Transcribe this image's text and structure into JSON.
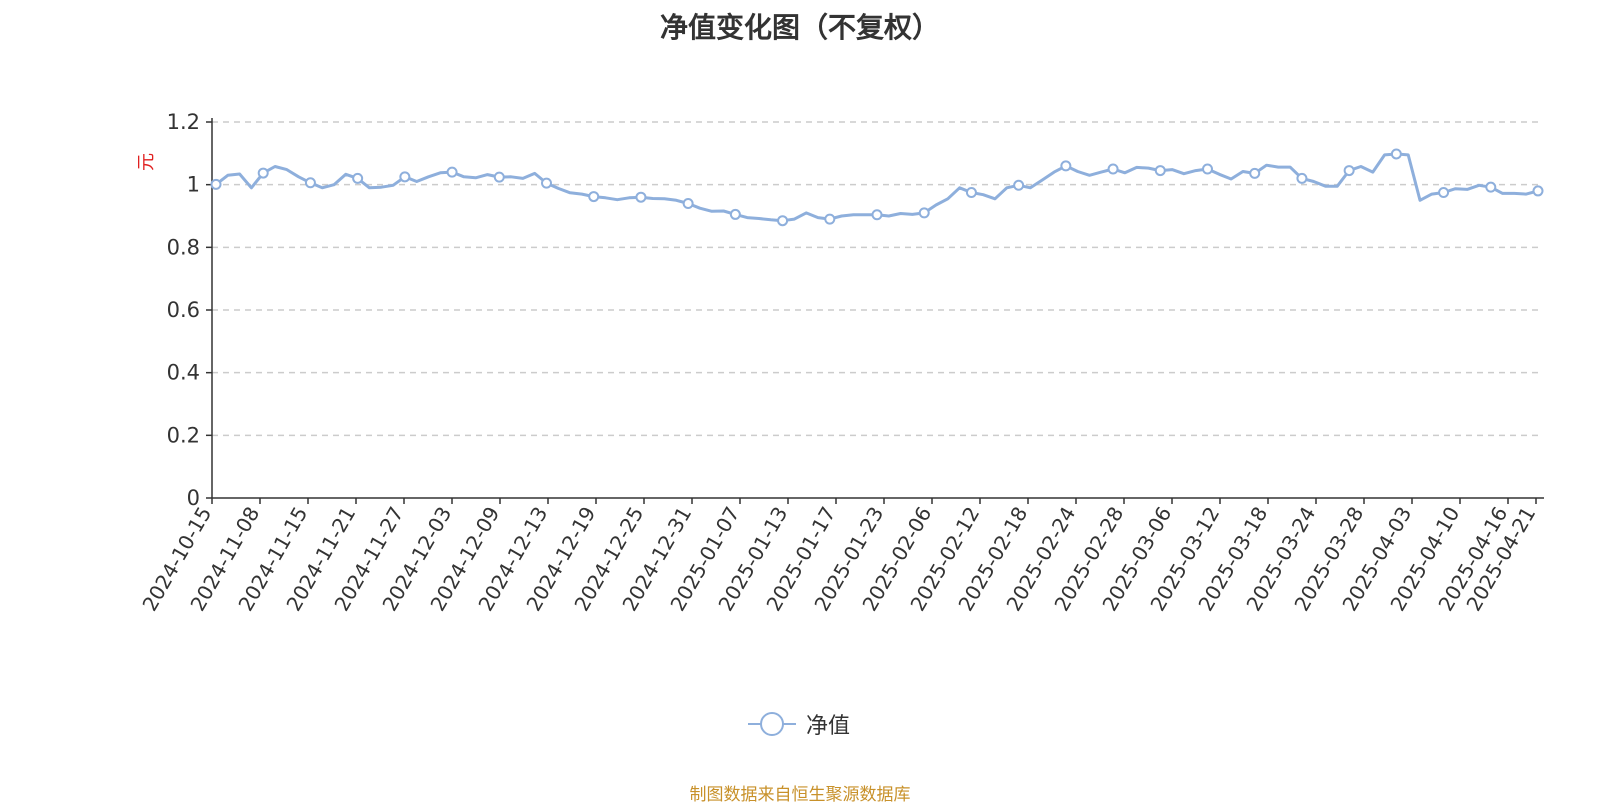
{
  "chart_data": {
    "type": "line",
    "title": "净值变化图（不复权）",
    "ylabel": "元",
    "xlabel": "",
    "ylim": [
      0,
      1.2
    ],
    "y_ticks": [
      "0",
      "0.2",
      "0.4",
      "0.6",
      "0.8",
      "1",
      "1.2"
    ],
    "grid": "horizontal dashed",
    "legend_position": "bottom-center",
    "x_tick_labels": [
      "2024-10-15",
      "2024-11-08",
      "2024-11-15",
      "2024-11-21",
      "2024-11-27",
      "2024-12-03",
      "2024-12-09",
      "2024-12-13",
      "2024-12-19",
      "2024-12-25",
      "2024-12-31",
      "2025-01-07",
      "2025-01-13",
      "2025-01-17",
      "2025-01-23",
      "2025-02-06",
      "2025-02-12",
      "2025-02-18",
      "2025-02-24",
      "2025-02-28",
      "2025-03-06",
      "2025-03-12",
      "2025-03-18",
      "2025-03-24",
      "2025-03-28",
      "2025-04-03",
      "2025-04-10",
      "2025-04-16",
      "2025-04-21"
    ],
    "series": [
      {
        "name": "净值",
        "color": "#8eafdc",
        "values": [
          1.001,
          1.03,
          1.034,
          0.99,
          1.037,
          1.058,
          1.048,
          1.025,
          1.006,
          0.99,
          1.0,
          1.033,
          1.02,
          0.99,
          0.992,
          0.998,
          1.025,
          1.01,
          1.025,
          1.038,
          1.04,
          1.025,
          1.022,
          1.032,
          1.024,
          1.025,
          1.02,
          1.036,
          1.005,
          0.988,
          0.974,
          0.97,
          0.962,
          0.958,
          0.952,
          0.958,
          0.96,
          0.956,
          0.955,
          0.95,
          0.94,
          0.925,
          0.915,
          0.916,
          0.905,
          0.895,
          0.892,
          0.888,
          0.885,
          0.89,
          0.91,
          0.895,
          0.89,
          0.9,
          0.904,
          0.904,
          0.904,
          0.9,
          0.908,
          0.905,
          0.91,
          0.935,
          0.955,
          0.99,
          0.975,
          0.968,
          0.955,
          0.99,
          0.998,
          0.99,
          1.015,
          1.04,
          1.06,
          1.042,
          1.03,
          1.04,
          1.05,
          1.038,
          1.055,
          1.053,
          1.045,
          1.048,
          1.035,
          1.045,
          1.05,
          1.033,
          1.018,
          1.042,
          1.036,
          1.062,
          1.056,
          1.056,
          1.02,
          1.01,
          0.995,
          0.995,
          1.045,
          1.058,
          1.04,
          1.095,
          1.098,
          1.095,
          0.95,
          0.97,
          0.975,
          0.987,
          0.985,
          0.998,
          0.992,
          0.972,
          0.972,
          0.97,
          0.98
        ]
      }
    ]
  },
  "legend": {
    "label": "净值"
  },
  "source_note": "制图数据来自恒生聚源数据库"
}
